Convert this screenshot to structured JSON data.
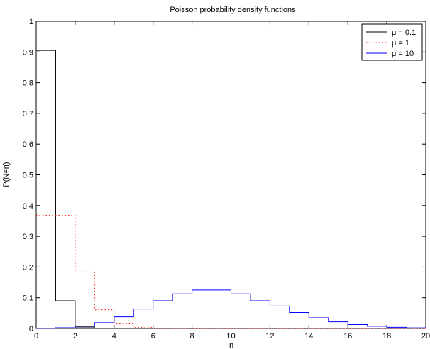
{
  "chart_data": {
    "type": "line",
    "title": "Poisson probability density functions",
    "xlabel": "n",
    "ylabel": "P(N=n)",
    "xlim": [
      0,
      20
    ],
    "ylim": [
      0,
      1
    ],
    "xticks": [
      "0",
      "2",
      "4",
      "6",
      "8",
      "10",
      "12",
      "14",
      "16",
      "18",
      "20"
    ],
    "yticks": [
      "0",
      "0.1",
      "0.2",
      "0.3",
      "0.4",
      "0.5",
      "0.6",
      "0.7",
      "0.8",
      "0.9",
      "1"
    ],
    "grid": false,
    "legend_position": "top-right",
    "x": [
      0,
      1,
      2,
      3,
      4,
      5,
      6,
      7,
      8,
      9,
      10,
      11,
      12,
      13,
      14,
      15,
      16,
      17,
      18,
      19,
      20
    ],
    "series": [
      {
        "name": "μ = 0.1",
        "color": "#000000",
        "dash": "solid",
        "values": [
          0.905,
          0.09,
          0.0045,
          0.00015,
          0,
          0,
          0,
          0,
          0,
          0,
          0,
          0,
          0,
          0,
          0,
          0,
          0,
          0,
          0,
          0,
          0
        ]
      },
      {
        "name": "μ = 1",
        "color": "#ff0000",
        "dash": "dotted",
        "values": [
          0.368,
          0.368,
          0.184,
          0.061,
          0.015,
          0.003,
          0.0005,
          0.0001,
          0,
          0,
          0,
          0,
          0,
          0,
          0,
          0,
          0,
          0,
          0,
          0,
          0
        ]
      },
      {
        "name": "μ = 10",
        "color": "#0000ff",
        "dash": "solid",
        "values": [
          0.0005,
          0.0023,
          0.0076,
          0.0189,
          0.0378,
          0.0631,
          0.0901,
          0.1126,
          0.1251,
          0.1251,
          0.1126,
          0.0901,
          0.0729,
          0.0521,
          0.0347,
          0.0217,
          0.0128,
          0.0071,
          0.0037,
          0.0019,
          0.0009
        ]
      }
    ]
  }
}
